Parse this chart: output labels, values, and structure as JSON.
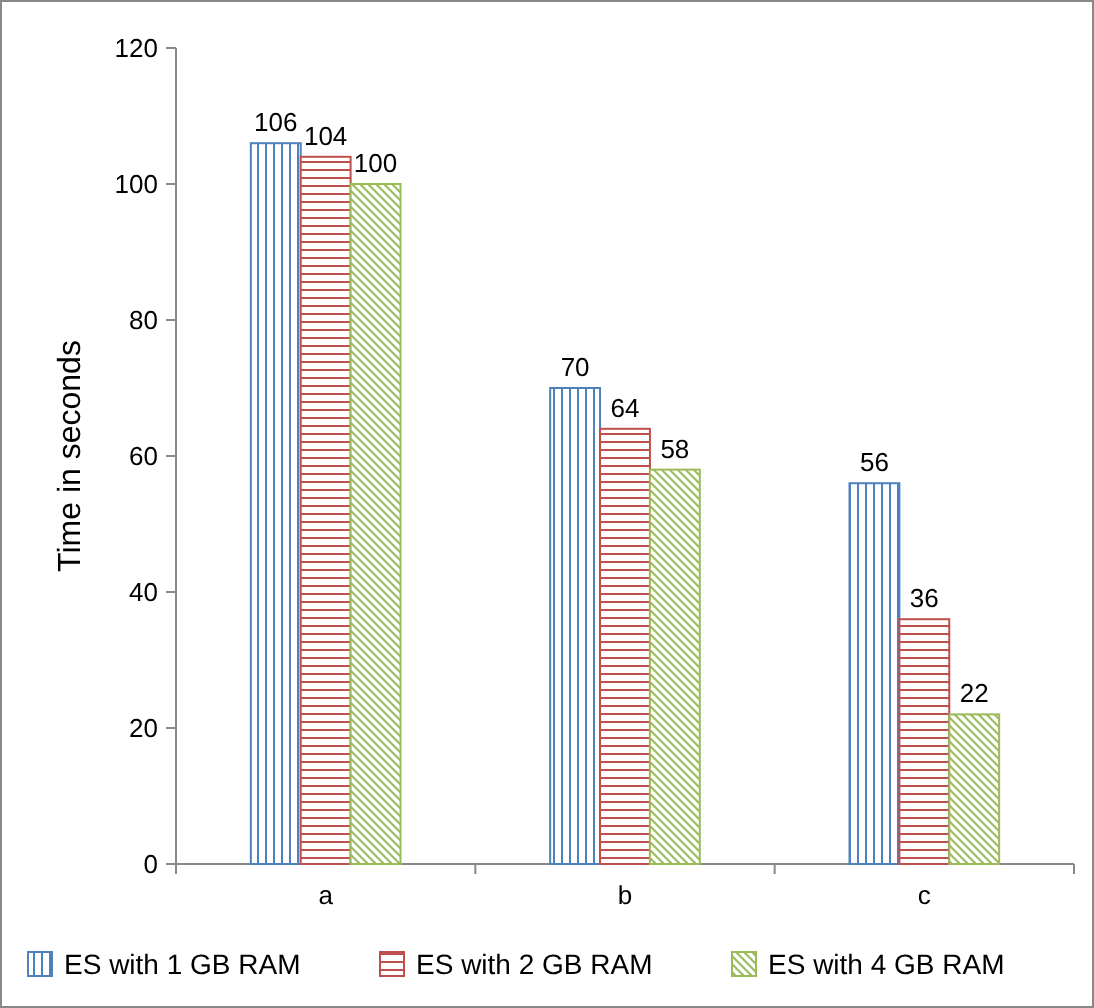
{
  "chart_data": {
    "type": "bar",
    "ylabel": "Time in seconds",
    "categories": [
      "a",
      "b",
      "c"
    ],
    "series": [
      {
        "name": "ES with 1 GB RAM",
        "color": "#4f81bd",
        "values": [
          106,
          70,
          56
        ]
      },
      {
        "name": "ES with 2 GB RAM",
        "color": "#c0504d",
        "values": [
          104,
          64,
          36
        ]
      },
      {
        "name": "ES with 4 GB RAM",
        "color": "#9bbb59",
        "values": [
          100,
          58,
          22
        ]
      }
    ],
    "ylim": [
      0,
      120
    ],
    "yticks": [
      0,
      20,
      40,
      60,
      80,
      100,
      120
    ],
    "data_labels": true,
    "legend": "bottom",
    "grid": false
  }
}
